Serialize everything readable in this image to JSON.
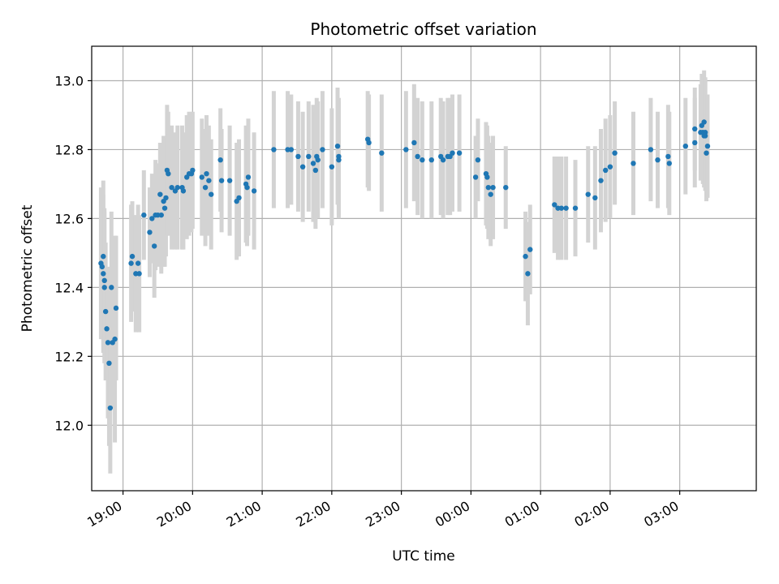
{
  "chart_data": {
    "type": "scatter",
    "title": "Photometric offset variation",
    "xlabel": "UTC time",
    "ylabel": "Photometric offset",
    "x_axis": "time",
    "x_range": [
      "18:33",
      "04:06"
    ],
    "x_ticks": [
      "19:00",
      "20:00",
      "21:00",
      "22:00",
      "23:00",
      "00:00",
      "01:00",
      "02:00",
      "03:00"
    ],
    "ylim": [
      11.81,
      13.1
    ],
    "y_ticks": [
      "12.0",
      "12.2",
      "12.4",
      "12.6",
      "12.8",
      "13.0"
    ],
    "grid": true,
    "colors": {
      "points": "#1f77b4",
      "errorbars": "#d3d3d3",
      "grid": "#b0b0b0"
    },
    "series": [
      {
        "points": [
          {
            "t": "18:41",
            "y": 12.47,
            "err": 0.22
          },
          {
            "t": "18:42",
            "y": 12.46,
            "err": 0.21
          },
          {
            "t": "18:43",
            "y": 12.49,
            "err": 0.22
          },
          {
            "t": "18:43",
            "y": 12.44,
            "err": 0.23
          },
          {
            "t": "18:44",
            "y": 12.42,
            "err": 0.21
          },
          {
            "t": "18:44",
            "y": 12.4,
            "err": 0.22
          },
          {
            "t": "18:45",
            "y": 12.33,
            "err": 0.2
          },
          {
            "t": "18:46",
            "y": 12.28,
            "err": 0.14
          },
          {
            "t": "18:47",
            "y": 12.24,
            "err": 0.22
          },
          {
            "t": "18:48",
            "y": 12.18,
            "err": 0.24
          },
          {
            "t": "18:49",
            "y": 12.05,
            "err": 0.19
          },
          {
            "t": "18:50",
            "y": 12.4,
            "err": 0.22
          },
          {
            "t": "18:51",
            "y": 12.24,
            "err": 0.19
          },
          {
            "t": "18:53",
            "y": 12.25,
            "err": 0.3
          },
          {
            "t": "18:54",
            "y": 12.34,
            "err": 0.21
          },
          {
            "t": "19:07",
            "y": 12.47,
            "err": 0.17
          },
          {
            "t": "19:08",
            "y": 12.49,
            "err": 0.16
          },
          {
            "t": "19:11",
            "y": 12.44,
            "err": 0.17
          },
          {
            "t": "19:13",
            "y": 12.47,
            "err": 0.17
          },
          {
            "t": "19:14",
            "y": 12.44,
            "err": 0.17
          },
          {
            "t": "19:18",
            "y": 12.61,
            "err": 0.13
          },
          {
            "t": "19:23",
            "y": 12.56,
            "err": 0.13
          },
          {
            "t": "19:25",
            "y": 12.6,
            "err": 0.13
          },
          {
            "t": "19:27",
            "y": 12.52,
            "err": 0.15
          },
          {
            "t": "19:28",
            "y": 12.61,
            "err": 0.16
          },
          {
            "t": "19:30",
            "y": 12.61,
            "err": 0.15
          },
          {
            "t": "19:32",
            "y": 12.67,
            "err": 0.15
          },
          {
            "t": "19:33",
            "y": 12.61,
            "err": 0.17
          },
          {
            "t": "19:35",
            "y": 12.65,
            "err": 0.19
          },
          {
            "t": "19:36",
            "y": 12.63,
            "err": 0.17
          },
          {
            "t": "19:37",
            "y": 12.66,
            "err": 0.17
          },
          {
            "t": "19:38",
            "y": 12.74,
            "err": 0.19
          },
          {
            "t": "19:39",
            "y": 12.73,
            "err": 0.18
          },
          {
            "t": "19:42",
            "y": 12.69,
            "err": 0.18
          },
          {
            "t": "19:45",
            "y": 12.68,
            "err": 0.17
          },
          {
            "t": "19:47",
            "y": 12.69,
            "err": 0.18
          },
          {
            "t": "19:51",
            "y": 12.69,
            "err": 0.18
          },
          {
            "t": "19:52",
            "y": 12.68,
            "err": 0.17
          },
          {
            "t": "19:55",
            "y": 12.72,
            "err": 0.18
          },
          {
            "t": "19:57",
            "y": 12.73,
            "err": 0.18
          },
          {
            "t": "19:59",
            "y": 12.73,
            "err": 0.17
          },
          {
            "t": "20:00",
            "y": 12.74,
            "err": 0.17
          },
          {
            "t": "20:08",
            "y": 12.72,
            "err": 0.17
          },
          {
            "t": "20:11",
            "y": 12.69,
            "err": 0.17
          },
          {
            "t": "20:12",
            "y": 12.73,
            "err": 0.17
          },
          {
            "t": "20:14",
            "y": 12.71,
            "err": 0.16
          },
          {
            "t": "20:16",
            "y": 12.67,
            "err": 0.16
          },
          {
            "t": "20:24",
            "y": 12.77,
            "err": 0.15
          },
          {
            "t": "20:25",
            "y": 12.71,
            "err": 0.15
          },
          {
            "t": "20:32",
            "y": 12.71,
            "err": 0.16
          },
          {
            "t": "20:38",
            "y": 12.65,
            "err": 0.17
          },
          {
            "t": "20:40",
            "y": 12.66,
            "err": 0.17
          },
          {
            "t": "20:46",
            "y": 12.7,
            "err": 0.17
          },
          {
            "t": "20:47",
            "y": 12.69,
            "err": 0.17
          },
          {
            "t": "20:48",
            "y": 12.72,
            "err": 0.17
          },
          {
            "t": "20:53",
            "y": 12.68,
            "err": 0.17
          },
          {
            "t": "21:10",
            "y": 12.8,
            "err": 0.17
          },
          {
            "t": "21:22",
            "y": 12.8,
            "err": 0.17
          },
          {
            "t": "21:25",
            "y": 12.8,
            "err": 0.16
          },
          {
            "t": "21:31",
            "y": 12.78,
            "err": 0.16
          },
          {
            "t": "21:35",
            "y": 12.75,
            "err": 0.16
          },
          {
            "t": "21:40",
            "y": 12.78,
            "err": 0.16
          },
          {
            "t": "21:44",
            "y": 12.76,
            "err": 0.17
          },
          {
            "t": "21:46",
            "y": 12.74,
            "err": 0.17
          },
          {
            "t": "21:47",
            "y": 12.78,
            "err": 0.17
          },
          {
            "t": "21:48",
            "y": 12.77,
            "err": 0.17
          },
          {
            "t": "21:52",
            "y": 12.8,
            "err": 0.17
          },
          {
            "t": "22:00",
            "y": 12.75,
            "err": 0.17
          },
          {
            "t": "22:05",
            "y": 12.81,
            "err": 0.17
          },
          {
            "t": "22:06",
            "y": 12.78,
            "err": 0.17
          },
          {
            "t": "22:06",
            "y": 12.77,
            "err": 0.17
          },
          {
            "t": "22:31",
            "y": 12.83,
            "err": 0.14
          },
          {
            "t": "22:32",
            "y": 12.82,
            "err": 0.14
          },
          {
            "t": "22:43",
            "y": 12.79,
            "err": 0.17
          },
          {
            "t": "23:04",
            "y": 12.8,
            "err": 0.17
          },
          {
            "t": "23:11",
            "y": 12.82,
            "err": 0.17
          },
          {
            "t": "23:14",
            "y": 12.78,
            "err": 0.17
          },
          {
            "t": "23:18",
            "y": 12.77,
            "err": 0.17
          },
          {
            "t": "23:26",
            "y": 12.77,
            "err": 0.17
          },
          {
            "t": "23:34",
            "y": 12.78,
            "err": 0.17
          },
          {
            "t": "23:36",
            "y": 12.77,
            "err": 0.17
          },
          {
            "t": "23:40",
            "y": 12.78,
            "err": 0.17
          },
          {
            "t": "23:42",
            "y": 12.78,
            "err": 0.17
          },
          {
            "t": "23:44",
            "y": 12.79,
            "err": 0.17
          },
          {
            "t": "23:50",
            "y": 12.79,
            "err": 0.17
          },
          {
            "t": "00:04",
            "y": 12.72,
            "err": 0.12
          },
          {
            "t": "00:06",
            "y": 12.77,
            "err": 0.12
          },
          {
            "t": "00:13",
            "y": 12.73,
            "err": 0.15
          },
          {
            "t": "00:14",
            "y": 12.72,
            "err": 0.15
          },
          {
            "t": "00:15",
            "y": 12.69,
            "err": 0.15
          },
          {
            "t": "00:17",
            "y": 12.67,
            "err": 0.15
          },
          {
            "t": "00:19",
            "y": 12.69,
            "err": 0.15
          },
          {
            "t": "00:30",
            "y": 12.69,
            "err": 0.12
          },
          {
            "t": "00:47",
            "y": 12.49,
            "err": 0.13
          },
          {
            "t": "00:49",
            "y": 12.44,
            "err": 0.15
          },
          {
            "t": "00:51",
            "y": 12.51,
            "err": 0.13
          },
          {
            "t": "01:12",
            "y": 12.64,
            "err": 0.14
          },
          {
            "t": "01:15",
            "y": 12.63,
            "err": 0.15
          },
          {
            "t": "01:18",
            "y": 12.63,
            "err": 0.15
          },
          {
            "t": "01:22",
            "y": 12.63,
            "err": 0.15
          },
          {
            "t": "01:30",
            "y": 12.63,
            "err": 0.14
          },
          {
            "t": "01:41",
            "y": 12.67,
            "err": 0.14
          },
          {
            "t": "01:47",
            "y": 12.66,
            "err": 0.15
          },
          {
            "t": "01:52",
            "y": 12.71,
            "err": 0.15
          },
          {
            "t": "01:56",
            "y": 12.74,
            "err": 0.15
          },
          {
            "t": "02:00",
            "y": 12.75,
            "err": 0.15
          },
          {
            "t": "02:04",
            "y": 12.79,
            "err": 0.15
          },
          {
            "t": "02:20",
            "y": 12.76,
            "err": 0.15
          },
          {
            "t": "02:35",
            "y": 12.8,
            "err": 0.15
          },
          {
            "t": "02:41",
            "y": 12.77,
            "err": 0.14
          },
          {
            "t": "02:50",
            "y": 12.78,
            "err": 0.15
          },
          {
            "t": "02:51",
            "y": 12.76,
            "err": 0.15
          },
          {
            "t": "03:05",
            "y": 12.81,
            "err": 0.14
          },
          {
            "t": "03:13",
            "y": 12.86,
            "err": 0.12
          },
          {
            "t": "03:13",
            "y": 12.82,
            "err": 0.13
          },
          {
            "t": "03:18",
            "y": 12.85,
            "err": 0.14
          },
          {
            "t": "03:19",
            "y": 12.87,
            "err": 0.15
          },
          {
            "t": "03:20",
            "y": 12.85,
            "err": 0.15
          },
          {
            "t": "03:21",
            "y": 12.84,
            "err": 0.15
          },
          {
            "t": "03:21",
            "y": 12.88,
            "err": 0.15
          },
          {
            "t": "03:22",
            "y": 12.85,
            "err": 0.16
          },
          {
            "t": "03:22",
            "y": 12.84,
            "err": 0.16
          },
          {
            "t": "03:23",
            "y": 12.79,
            "err": 0.14
          },
          {
            "t": "03:24",
            "y": 12.81,
            "err": 0.15
          }
        ]
      }
    ]
  }
}
